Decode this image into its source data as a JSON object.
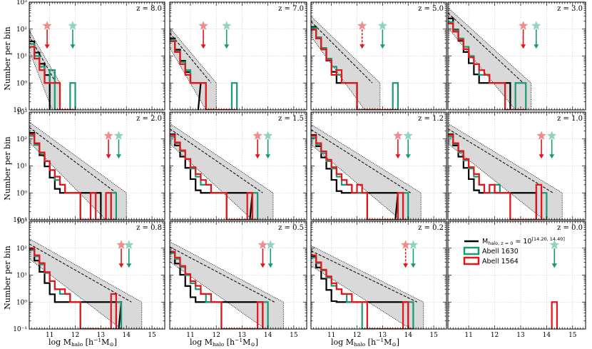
{
  "figure": {
    "ylabel": "Number per bin",
    "xlabel": "log M",
    "xlabel_sub": "halo",
    "xlabel_units_open": " [h",
    "xlabel_units_exp": "−1",
    "xlabel_units_m": "M",
    "xlabel_units_sun": "⊙",
    "xlabel_units_close": "]"
  },
  "legend": {
    "black_label_main": "M",
    "black_label_sub": "halo, z = 0",
    "black_label_eq": " = 10",
    "black_label_exp": "[14.20, 14.40]",
    "teal_label": "Abell 1630",
    "red_label": "Abell 1564"
  },
  "colors": {
    "teal": "#1a9a76",
    "red": "#e8141a",
    "black": "#000000",
    "band_fill": "#d9d9d9",
    "grid": "#c8c8c8",
    "star_red": "#f08c8c",
    "star_teal": "#8fd4bf"
  },
  "chart_data": {
    "type": "histogram-step",
    "xlim": [
      10.2,
      15.5
    ],
    "ylim": [
      0.1,
      1000
    ],
    "yscale": "log",
    "xticks": [
      "11",
      "12",
      "13",
      "14",
      "15"
    ],
    "yticks": [
      "10⁻¹",
      "10⁰",
      "10¹",
      "10²",
      "10³"
    ],
    "bin_width": 0.2,
    "x_start": 10.2,
    "panels": [
      {
        "z_label": "z = 8.0",
        "band_hi_end": 11.4,
        "band_lo_end": 11.1,
        "med_end": 11.0,
        "med_y0": 35,
        "teal": [
          28,
          10,
          4,
          1,
          3,
          0,
          0,
          0,
          1
        ],
        "red": [
          22,
          8,
          3,
          1,
          1,
          1,
          0,
          0,
          0
        ],
        "star_red_x": 10.9,
        "star_teal_x": 11.9,
        "red_dashed": false
      },
      {
        "z_label": "z = 7.0",
        "band_hi_end": 12.0,
        "band_lo_end": 11.6,
        "med_end": 11.3,
        "med_y0": 45,
        "teal": [
          40,
          15,
          6,
          3,
          1,
          1,
          1,
          0,
          0,
          0,
          0,
          0,
          1
        ],
        "red": [
          35,
          14,
          5,
          2,
          1,
          1,
          1,
          0,
          0,
          0,
          0,
          0,
          0
        ],
        "star_red_x": 11.5,
        "star_teal_x": 12.4,
        "red_dashed": false
      },
      {
        "z_label": "z = 5.0",
        "band_hi_end": 12.9,
        "band_lo_end": 12.3,
        "med_end": 12.0,
        "med_y0": 120,
        "teal": [
          110,
          50,
          20,
          8,
          4,
          2,
          1,
          1,
          1,
          0,
          0,
          0,
          0,
          0,
          0,
          0,
          1
        ],
        "red": [
          95,
          45,
          18,
          7,
          2,
          3,
          1,
          1,
          1,
          0,
          0,
          0,
          0,
          0,
          0,
          0,
          0
        ],
        "star_red_x": 12.2,
        "star_teal_x": 13.0,
        "red_dashed": true
      },
      {
        "z_label": "z = 3.0",
        "band_hi_end": 13.4,
        "band_lo_end": 12.8,
        "med_end": 12.6,
        "med_y0": 250,
        "teal": [
          180,
          90,
          45,
          22,
          10,
          5,
          2,
          2,
          1,
          1,
          1,
          0,
          0,
          1,
          1
        ],
        "red": [
          160,
          80,
          40,
          18,
          9,
          5,
          3,
          2,
          1,
          1,
          1,
          0,
          0,
          0,
          0
        ],
        "star_red_x": 13.1,
        "star_teal_x": 13.6,
        "red_dashed": false
      },
      {
        "z_label": "z = 2.0",
        "band_hi_end": 14.0,
        "band_lo_end": 13.2,
        "med_end": 13.0,
        "med_y0": 170,
        "teal": [
          130,
          60,
          30,
          15,
          7,
          3,
          2,
          1,
          1,
          1,
          0,
          0,
          0,
          0,
          0,
          0,
          1
        ],
        "red": [
          150,
          70,
          32,
          15,
          7,
          4,
          2,
          1,
          1,
          1,
          0,
          0,
          1,
          0,
          0,
          1,
          0
        ],
        "star_red_x": 13.3,
        "star_teal_x": 13.7,
        "red_dashed": false
      },
      {
        "z_label": "z = 1.5",
        "band_hi_end": 14.2,
        "band_lo_end": 13.4,
        "med_end": 13.3,
        "med_y0": 150,
        "teal": [
          120,
          70,
          35,
          18,
          8,
          4,
          2,
          2,
          1,
          1,
          1,
          0,
          0,
          0,
          0,
          0,
          1
        ],
        "red": [
          140,
          75,
          38,
          18,
          9,
          5,
          3,
          2,
          1,
          1,
          1,
          0,
          0,
          0,
          0,
          1,
          0
        ],
        "star_red_x": 13.6,
        "star_teal_x": 14.0,
        "red_dashed": false
      },
      {
        "z_label": "z = 1.2",
        "band_hi_end": 14.5,
        "band_lo_end": 13.7,
        "med_end": 13.5,
        "med_y0": 140,
        "teal": [
          110,
          60,
          30,
          15,
          8,
          4,
          2,
          2,
          1,
          1,
          1,
          0,
          0,
          0,
          0,
          0,
          0,
          0,
          1
        ],
        "red": [
          130,
          70,
          35,
          17,
          9,
          5,
          3,
          2,
          1,
          2,
          1,
          0,
          0,
          0,
          0,
          0,
          0,
          1,
          0
        ],
        "star_red_x": 13.6,
        "star_teal_x": 14.0,
        "red_dashed": false
      },
      {
        "z_label": "z = 1.0",
        "band_hi_end": 14.6,
        "band_lo_end": 13.9,
        "med_end": 13.6,
        "med_y0": 150,
        "teal": [
          120,
          65,
          32,
          16,
          8,
          4,
          2,
          1,
          1,
          2,
          1,
          1,
          0,
          0,
          0,
          0,
          0,
          0,
          1
        ],
        "red": [
          140,
          70,
          36,
          18,
          9,
          5,
          2,
          1,
          2,
          1,
          1,
          1,
          0,
          0,
          0,
          0,
          0,
          2,
          0
        ],
        "star_red_x": 13.8,
        "star_teal_x": 14.2,
        "red_dashed": false
      },
      {
        "z_label": "z = 0.8",
        "band_hi_end": 14.6,
        "band_lo_end": 13.8,
        "med_end": 13.7,
        "med_y0": 90,
        "teal": [
          85,
          50,
          25,
          12,
          6,
          3,
          2,
          2,
          1,
          1,
          0,
          0,
          0,
          0,
          0,
          0,
          0,
          1
        ],
        "red": [
          100,
          55,
          28,
          13,
          6,
          3,
          3,
          2,
          1,
          1,
          0,
          0,
          0,
          0,
          0,
          0,
          2,
          0
        ],
        "star_red_x": 13.8,
        "star_teal_x": 14.1,
        "red_dashed": false
      },
      {
        "z_label": "z = 0.5",
        "band_hi_end": 14.6,
        "band_lo_end": 13.9,
        "med_end": 13.8,
        "med_y0": 70,
        "teal": [
          65,
          40,
          20,
          10,
          5,
          3,
          2,
          1,
          1,
          1,
          0,
          0,
          0,
          0,
          0,
          0,
          0,
          0,
          1
        ],
        "red": [
          75,
          45,
          22,
          11,
          6,
          4,
          2,
          2,
          1,
          1,
          0,
          0,
          0,
          0,
          0,
          0,
          0,
          1,
          0
        ],
        "star_red_x": 13.8,
        "star_teal_x": 14.1,
        "red_dashed": false
      },
      {
        "z_label": "z = 0.2",
        "band_hi_end": 14.6,
        "band_lo_end": 14.1,
        "med_end": 14.0,
        "med_y0": 50,
        "teal": [
          45,
          28,
          15,
          8,
          4,
          3,
          2,
          1,
          1,
          1,
          0,
          0,
          0,
          0,
          0,
          0,
          0,
          0,
          0,
          1
        ],
        "red": [
          55,
          30,
          16,
          9,
          5,
          3,
          2,
          2,
          1,
          1,
          1,
          0,
          0,
          0,
          0,
          0,
          0,
          0,
          1,
          0
        ],
        "star_red_x": 13.9,
        "star_teal_x": 14.2,
        "red_dashed": true
      },
      {
        "z_label": "z = 0.0",
        "band_hi_end": 0,
        "band_lo_end": 0,
        "med_end": 0,
        "med_y0": 0,
        "teal": [],
        "red": [],
        "single_bin_x": 14.2,
        "star_red_x": 14.3,
        "star_teal_x": 14.3,
        "red_dashed": false
      }
    ]
  }
}
